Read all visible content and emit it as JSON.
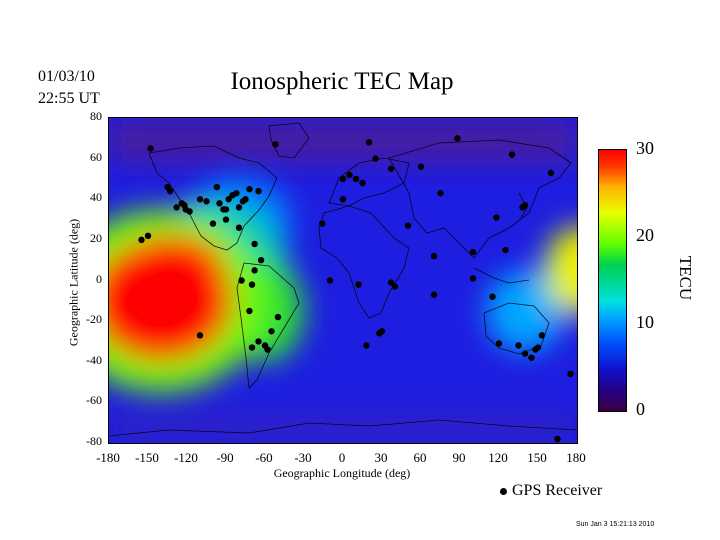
{
  "header": {
    "date": "01/03/10",
    "time": "22:55 UT",
    "title": "Ionospheric TEC Map"
  },
  "axes": {
    "ylabel": "Geographic Latitude (deg)",
    "xlabel": "Geographic Longitude (deg)",
    "yticks": [
      "80",
      "60",
      "40",
      "20",
      "0",
      "-20",
      "-40",
      "-60",
      "-80"
    ],
    "xticks": [
      "-180",
      "-150",
      "-120",
      "-90",
      "-60",
      "-30",
      "0",
      "30",
      "60",
      "90",
      "120",
      "150",
      "180"
    ]
  },
  "colorbar": {
    "label": "TECU",
    "ticks": [
      "30",
      "20",
      "10",
      "0"
    ],
    "range": [
      0,
      30
    ]
  },
  "legend": {
    "label": "GPS Receiver"
  },
  "footer": {
    "timestamp": "Sun Jan  3 15:21:13 2010"
  },
  "map": {
    "lon_range": [
      -180,
      180
    ],
    "lat_range": [
      -80,
      80
    ],
    "tec_blobs": [
      {
        "lon": -140,
        "lat": -10,
        "rlon": 55,
        "rlat": 30,
        "tec": 30
      },
      {
        "lon": -130,
        "lat": 5,
        "rlon": 40,
        "rlat": 18,
        "tec": 28
      },
      {
        "lon": -140,
        "lat": -10,
        "rlon": 80,
        "rlat": 45,
        "tec": 20
      },
      {
        "lon": -60,
        "lat": -15,
        "rlon": 30,
        "rlat": 25,
        "tec": 18
      },
      {
        "lon": -100,
        "lat": 0,
        "rlon": 60,
        "rlat": 40,
        "tec": 14
      },
      {
        "lon": 175,
        "lat": 5,
        "rlon": 20,
        "rlat": 20,
        "tec": 22
      },
      {
        "lon": 140,
        "lat": -15,
        "rlon": 30,
        "rlat": 20,
        "tec": 11
      },
      {
        "lon": -80,
        "lat": 30,
        "rlon": 40,
        "rlat": 20,
        "tec": 10
      }
    ],
    "stations": [
      [
        -148,
        65
      ],
      [
        -135,
        46
      ],
      [
        -133,
        44
      ],
      [
        -128,
        36
      ],
      [
        -124,
        38
      ],
      [
        -122,
        37
      ],
      [
        -121,
        35
      ],
      [
        -118,
        34
      ],
      [
        -110,
        40
      ],
      [
        -105,
        39
      ],
      [
        -97,
        46
      ],
      [
        -95,
        38
      ],
      [
        -92,
        35
      ],
      [
        -90,
        30
      ],
      [
        -88,
        40
      ],
      [
        -85,
        42
      ],
      [
        -82,
        43
      ],
      [
        -80,
        36
      ],
      [
        -77,
        39
      ],
      [
        -75,
        40
      ],
      [
        -72,
        45
      ],
      [
        -65,
        44
      ],
      [
        -68,
        18
      ],
      [
        -52,
        67
      ],
      [
        -155,
        20
      ],
      [
        -150,
        22
      ],
      [
        -100,
        28
      ],
      [
        -90,
        35
      ],
      [
        -80,
        26
      ],
      [
        -78,
        0
      ],
      [
        -70,
        -2
      ],
      [
        -68,
        5
      ],
      [
        -63,
        10
      ],
      [
        -72,
        -15
      ],
      [
        -70,
        -33
      ],
      [
        -65,
        -30
      ],
      [
        -60,
        -32
      ],
      [
        -58,
        -34
      ],
      [
        -55,
        -25
      ],
      [
        -50,
        -18
      ],
      [
        -110,
        -27
      ],
      [
        -16,
        28
      ],
      [
        0,
        40
      ],
      [
        0,
        50
      ],
      [
        5,
        52
      ],
      [
        10,
        50
      ],
      [
        15,
        48
      ],
      [
        20,
        68
      ],
      [
        25,
        60
      ],
      [
        37,
        55
      ],
      [
        60,
        56
      ],
      [
        75,
        43
      ],
      [
        88,
        70
      ],
      [
        50,
        27
      ],
      [
        70,
        12
      ],
      [
        28,
        -26
      ],
      [
        30,
        -25
      ],
      [
        18,
        -32
      ],
      [
        37,
        -1
      ],
      [
        40,
        -3
      ],
      [
        12,
        -2
      ],
      [
        100,
        1
      ],
      [
        118,
        31
      ],
      [
        115,
        -8
      ],
      [
        120,
        -31
      ],
      [
        135,
        -32
      ],
      [
        140,
        -36
      ],
      [
        145,
        -38
      ],
      [
        148,
        -34
      ],
      [
        150,
        -33
      ],
      [
        153,
        -27
      ],
      [
        138,
        36
      ],
      [
        140,
        37
      ],
      [
        130,
        62
      ],
      [
        160,
        53
      ],
      [
        165,
        -78
      ],
      [
        175,
        -46
      ],
      [
        -10,
        0
      ],
      [
        100,
        14
      ],
      [
        125,
        15
      ],
      [
        70,
        -7
      ]
    ]
  }
}
